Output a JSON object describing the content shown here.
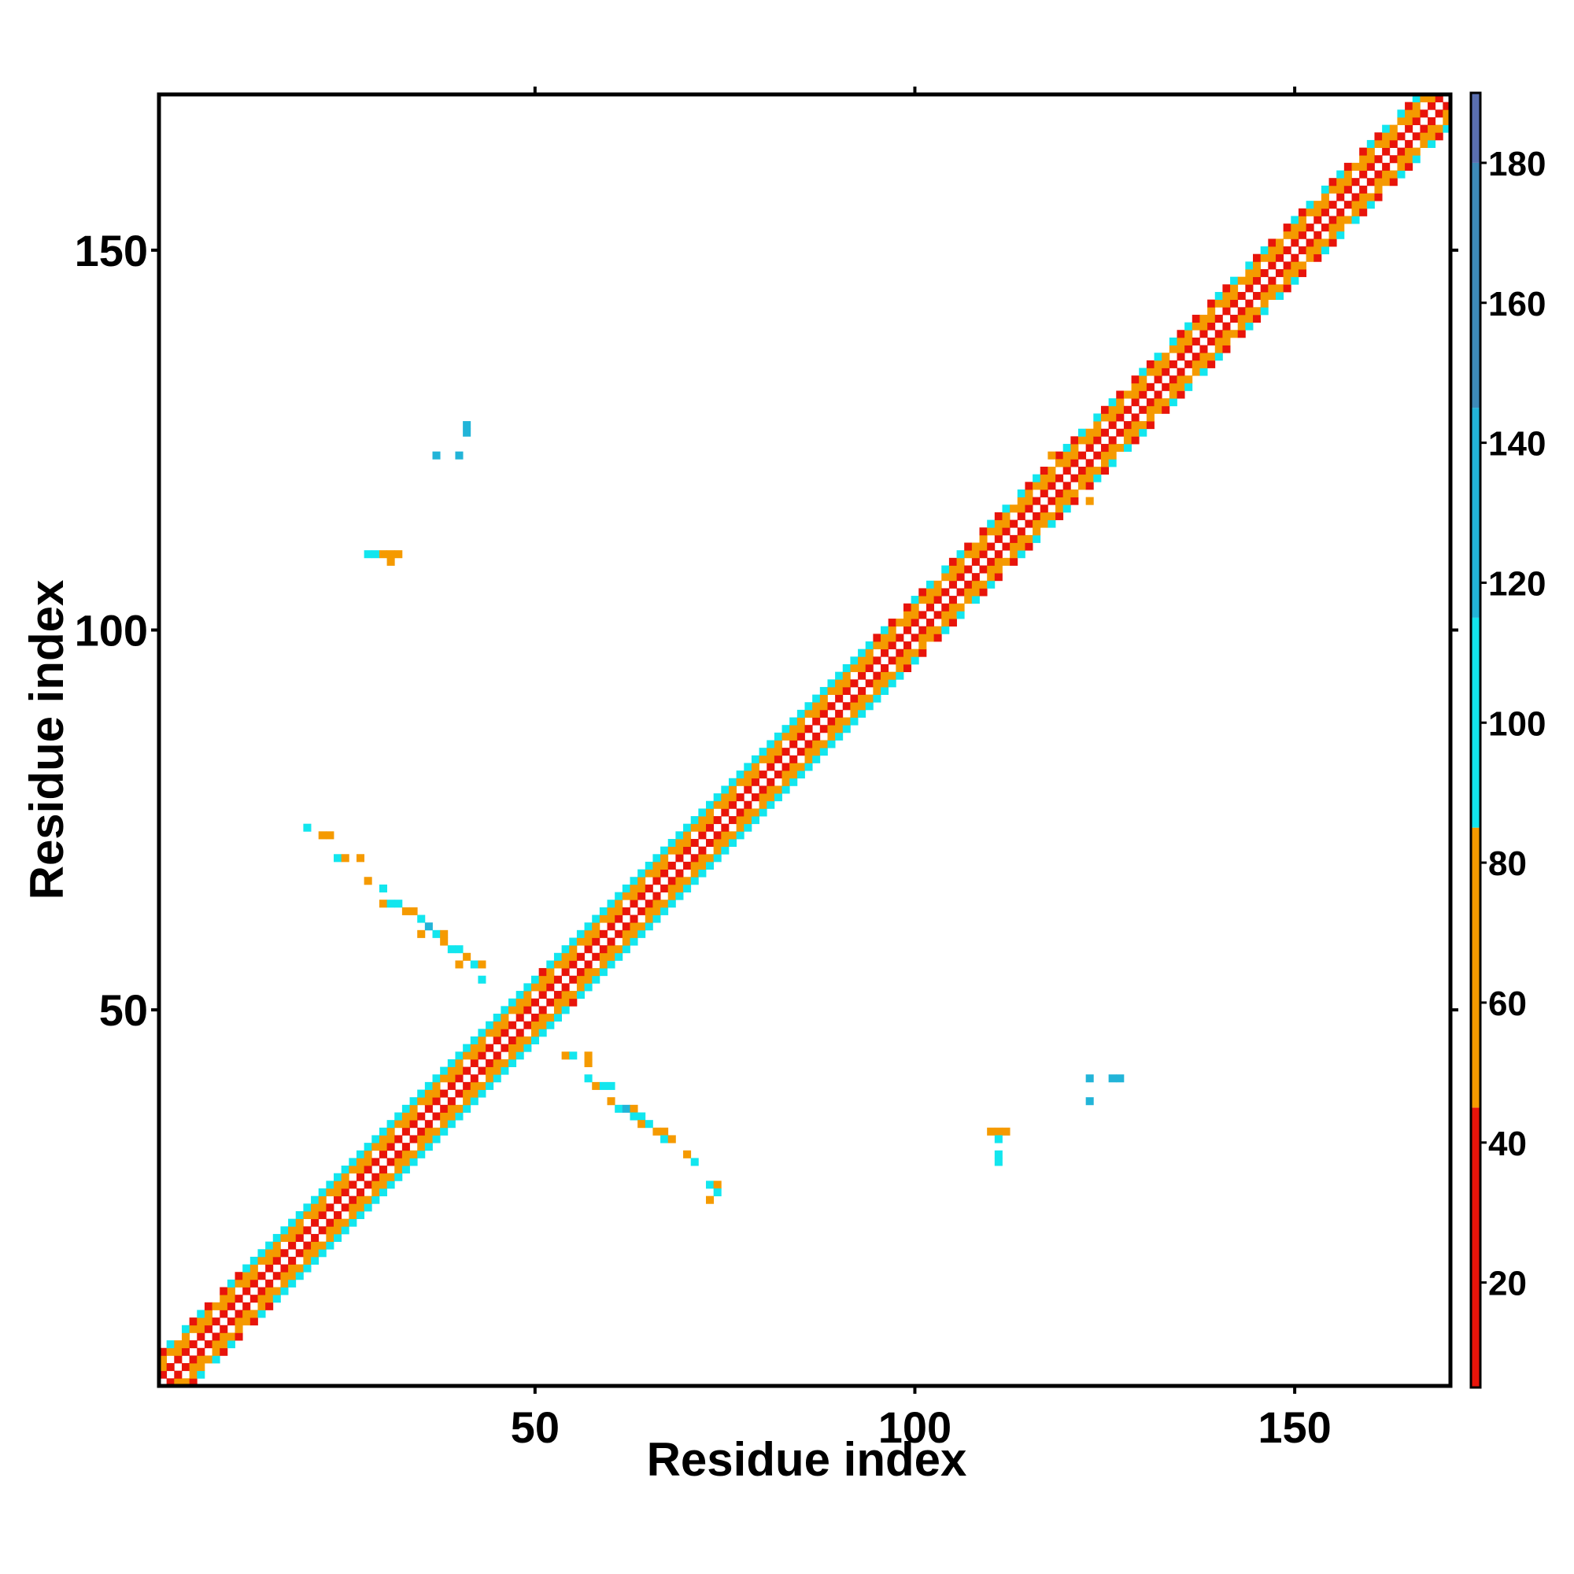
{
  "chart_data": {
    "type": "heatmap",
    "title": "",
    "xlabel": "Residue index",
    "ylabel": "Residue index",
    "xlim": [
      0.5,
      170.5
    ],
    "ylim": [
      0.5,
      170.5
    ],
    "x_ticks": [
      50,
      100,
      150
    ],
    "y_ticks": [
      50,
      100,
      150
    ],
    "colorbar": {
      "range": [
        5,
        190
      ],
      "ticks": [
        20,
        40,
        60,
        80,
        100,
        120,
        140,
        160,
        180
      ],
      "bands": [
        {
          "from": 5,
          "to": 45,
          "color": "#e8140a"
        },
        {
          "from": 45,
          "to": 85,
          "color": "#f59a00"
        },
        {
          "from": 85,
          "to": 115,
          "color": "#12e6ee"
        },
        {
          "from": 115,
          "to": 145,
          "color": "#22b4d8"
        },
        {
          "from": 145,
          "to": 180,
          "color": "#3d8ab8"
        },
        {
          "from": 180,
          "to": 190,
          "color": "#5a6fb0"
        }
      ]
    },
    "diagonal_band": {
      "description": "contacts for |i-j| <= 4 along the full sequence",
      "max_offset": 4,
      "range": [
        1,
        170
      ]
    },
    "off_diagonal_contacts": [
      [
        20,
        74,
        "c"
      ],
      [
        22,
        73,
        "o"
      ],
      [
        23,
        73,
        "o"
      ],
      [
        24,
        70,
        "c"
      ],
      [
        25,
        70,
        "o"
      ],
      [
        27,
        70,
        "o"
      ],
      [
        28,
        67,
        "o"
      ],
      [
        30,
        66,
        "c"
      ],
      [
        30,
        64,
        "o"
      ],
      [
        31,
        64,
        "c"
      ],
      [
        32,
        64,
        "c"
      ],
      [
        33,
        63,
        "o"
      ],
      [
        34,
        63,
        "o"
      ],
      [
        35,
        62,
        "c"
      ],
      [
        35,
        60,
        "o"
      ],
      [
        36,
        61,
        "b"
      ],
      [
        37,
        60,
        "c"
      ],
      [
        38,
        60,
        "o"
      ],
      [
        38,
        59,
        "o"
      ],
      [
        39,
        58,
        "c"
      ],
      [
        40,
        56,
        "o"
      ],
      [
        40,
        58,
        "c"
      ],
      [
        41,
        57,
        "o"
      ],
      [
        42,
        56,
        "c"
      ],
      [
        43,
        56,
        "o"
      ],
      [
        43,
        54,
        "c"
      ],
      [
        28,
        110,
        "c"
      ],
      [
        29,
        110,
        "c"
      ],
      [
        30,
        110,
        "o"
      ],
      [
        31,
        110,
        "o"
      ],
      [
        31,
        109,
        "o"
      ],
      [
        32,
        110,
        "o"
      ],
      [
        37,
        123,
        "b"
      ],
      [
        40,
        123,
        "b"
      ],
      [
        41,
        126,
        "b"
      ],
      [
        41,
        127,
        "b"
      ],
      [
        54,
        44,
        "o"
      ],
      [
        55,
        44,
        "c"
      ],
      [
        57,
        44,
        "o"
      ],
      [
        57,
        43,
        "o"
      ],
      [
        57,
        41,
        "c"
      ],
      [
        58,
        40,
        "o"
      ],
      [
        59,
        40,
        "c"
      ],
      [
        60,
        40,
        "c"
      ],
      [
        60,
        38,
        "o"
      ],
      [
        61,
        37,
        "c"
      ],
      [
        62,
        37,
        "b"
      ],
      [
        63,
        37,
        "o"
      ],
      [
        63,
        36,
        "c"
      ],
      [
        64,
        36,
        "c"
      ],
      [
        64,
        35,
        "o"
      ],
      [
        65,
        35,
        "c"
      ],
      [
        66,
        34,
        "o"
      ],
      [
        67,
        34,
        "o"
      ],
      [
        67,
        33,
        "c"
      ],
      [
        68,
        33,
        "o"
      ],
      [
        70,
        31,
        "o"
      ],
      [
        71,
        30,
        "c"
      ],
      [
        73,
        27,
        "c"
      ],
      [
        74,
        27,
        "o"
      ],
      [
        73,
        25,
        "o"
      ],
      [
        74,
        26,
        "c"
      ],
      [
        110,
        34,
        "o"
      ],
      [
        111,
        34,
        "o"
      ],
      [
        112,
        34,
        "o"
      ],
      [
        111,
        33,
        "c"
      ],
      [
        111,
        31,
        "c"
      ],
      [
        111,
        30,
        "c"
      ],
      [
        123,
        41,
        "b"
      ],
      [
        126,
        41,
        "b"
      ],
      [
        127,
        41,
        "b"
      ],
      [
        123,
        38,
        "b"
      ],
      [
        118,
        123,
        "o"
      ],
      [
        119,
        122,
        "o"
      ],
      [
        123,
        117,
        "o"
      ]
    ]
  }
}
